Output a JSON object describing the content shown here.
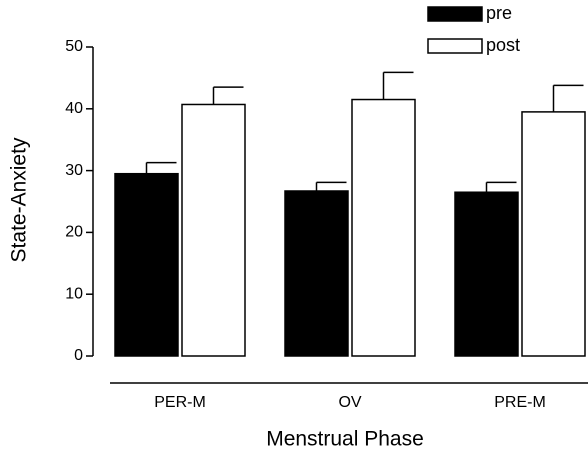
{
  "chart_data": {
    "type": "bar",
    "xlabel": "Menstrual Phase",
    "ylabel": "State-Anxiety",
    "categories": [
      "PER-M",
      "OV",
      "PRE-M"
    ],
    "series": [
      {
        "name": "pre",
        "color": "#000000",
        "values": [
          29.5,
          26.7,
          26.5
        ],
        "errors": [
          1.8,
          1.4,
          1.6
        ]
      },
      {
        "name": "post",
        "color": "#ffffff",
        "values": [
          40.7,
          41.5,
          39.5
        ],
        "errors": [
          2.8,
          4.4,
          4.3
        ]
      }
    ],
    "ylim": [
      0,
      50
    ],
    "yticks": [
      0,
      10,
      20,
      30,
      40,
      50
    ],
    "grid": false,
    "legend": "top-right"
  }
}
